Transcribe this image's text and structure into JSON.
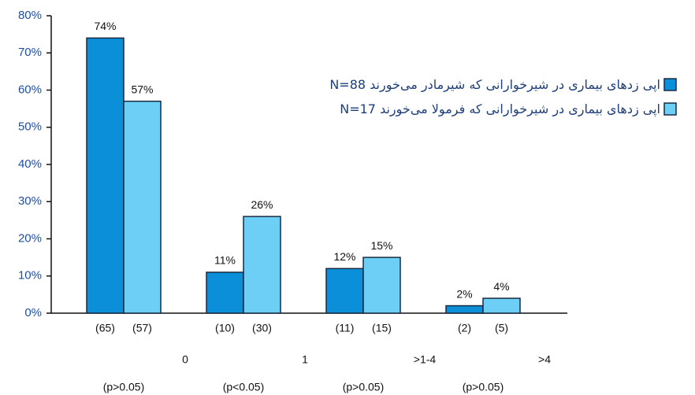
{
  "chart_data": {
    "type": "bar",
    "categories": [
      "0",
      "1",
      ">1-4",
      ">4"
    ],
    "p_labels": [
      "(p>0.05)",
      "(p<0.05)",
      "(p>0.05)",
      "(p>0.05)"
    ],
    "series": [
      {
        "name": "اپی زدهای بیماری در شیرخوارانی که شیرمادر می‌خورند N=88",
        "color": "#0a8fd8",
        "values": [
          74,
          11,
          12,
          2
        ],
        "value_labels": [
          "74%",
          "11%",
          "12%",
          "2%"
        ],
        "n": [
          65,
          10,
          11,
          2
        ],
        "n_labels": [
          "(65)",
          "(10)",
          "(11)",
          "(2)"
        ]
      },
      {
        "name": "اپی زدهای بیماری در شیرخوارانی که فرمولا می‌خورند N=17",
        "color": "#6dcff6",
        "values": [
          57,
          26,
          15,
          4
        ],
        "value_labels": [
          "57%",
          "26%",
          "15%",
          "4%"
        ],
        "n": [
          57,
          30,
          15,
          5
        ],
        "n_labels": [
          "(57)",
          "(30)",
          "(15)",
          "(5)"
        ]
      }
    ],
    "ylim": [
      0,
      80
    ],
    "yticks": [
      {
        "value": 0,
        "label": "0%"
      },
      {
        "value": 10,
        "label": "10%"
      },
      {
        "value": 20,
        "label": "20%"
      },
      {
        "value": 30,
        "label": "30%"
      },
      {
        "value": 40,
        "label": "40%"
      },
      {
        "value": 50,
        "label": "50%"
      },
      {
        "value": 60,
        "label": "60%"
      },
      {
        "value": 70,
        "label": "70%"
      },
      {
        "value": 80,
        "label": "80%"
      }
    ],
    "grid": false,
    "legend": "upper right"
  }
}
